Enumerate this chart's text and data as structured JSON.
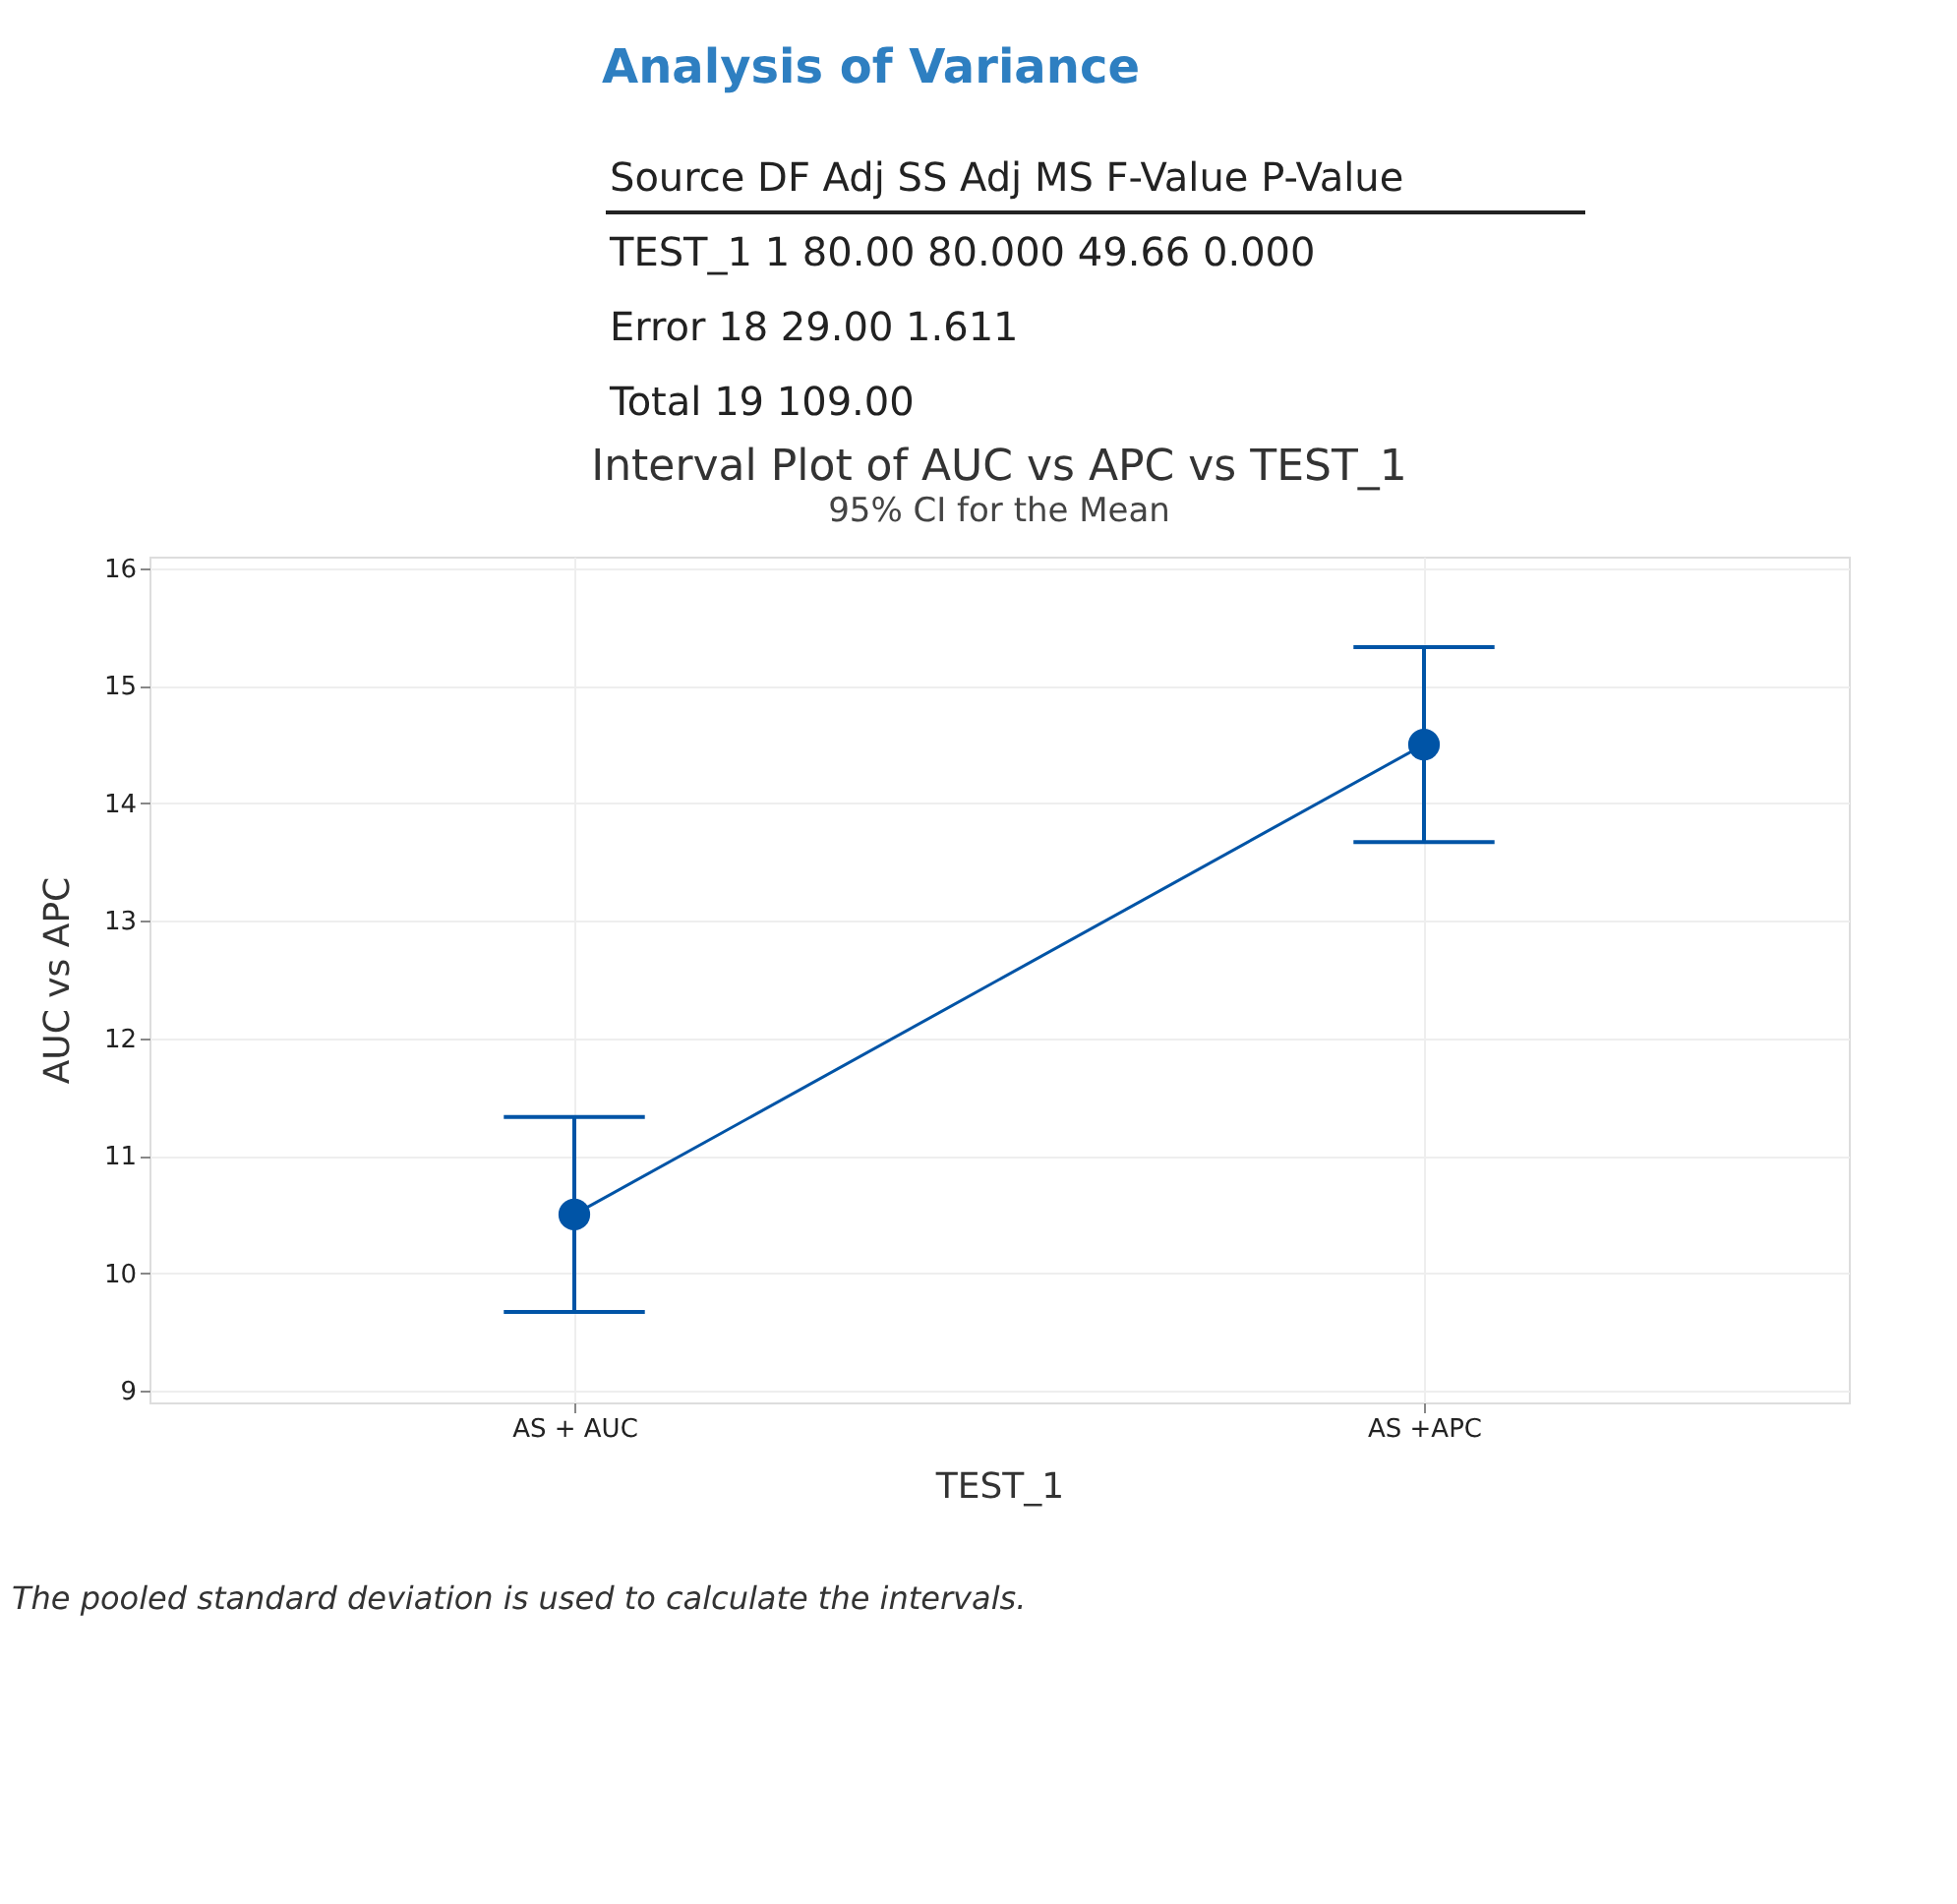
{
  "chart_data": [
    {
      "type": "other",
      "title": "Analysis of Variance",
      "annotations": [
        "Source DF Adj SS Adj MS F-Value P-Value",
        "TEST_1 1 80.00 80.000 49.66 0.000",
        "Error 18 29.00 1.611",
        "Total 19 109.00"
      ]
    },
    {
      "type": "line",
      "title": "Interval Plot of AUC vs APC vs TEST_1",
      "subtitle": "95% CI for the Mean",
      "xlabel": "TEST_1",
      "ylabel": "AUC vs APC",
      "categories": [
        "AS + AUC",
        "AS +APC"
      ],
      "series": [
        {
          "color": "#0054a6",
          "values": [
            10.5,
            14.5
          ],
          "errors": [
            0.83,
            0.83
          ]
        }
      ],
      "ylim": [
        8.9,
        16.1
      ],
      "yticks": [
        9,
        10,
        11,
        12,
        13,
        14,
        15,
        16
      ],
      "grid": true,
      "marker": "circle",
      "line_style": "solid",
      "annotations": [
        "The pooled standard deviation is used to calculate the intervals."
      ]
    }
  ]
}
